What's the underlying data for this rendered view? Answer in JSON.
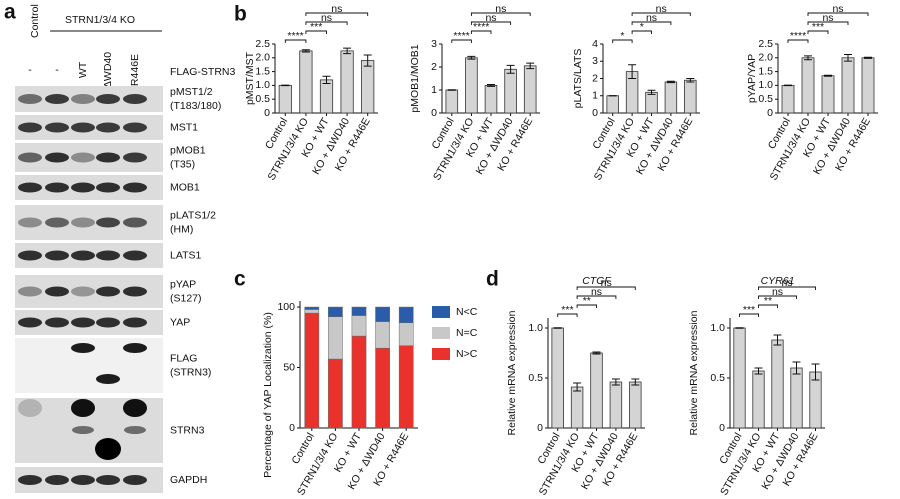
{
  "panel_labels": [
    "a",
    "b",
    "c",
    "d"
  ],
  "blot": {
    "control": "Control",
    "ko": "STRN1/3/4 KO",
    "lanes": [
      "-",
      "-",
      "WT",
      "ΔWD40",
      "R446E"
    ],
    "lane_row_label": "FLAG-STRN3",
    "rows": [
      {
        "lines": [
          "pMST1/2",
          "(T183/180)"
        ]
      },
      {
        "lines": [
          "MST1"
        ]
      },
      {
        "lines": [
          "pMOB1",
          "(T35)"
        ]
      },
      {
        "lines": [
          "MOB1"
        ]
      },
      {
        "lines": [
          "pLATS1/2",
          "(HM)"
        ]
      },
      {
        "lines": [
          "LATS1"
        ]
      },
      {
        "lines": [
          "pYAP",
          "(S127)"
        ]
      },
      {
        "lines": [
          "YAP"
        ]
      },
      {
        "lines": [
          "FLAG",
          "(STRN3)"
        ]
      },
      {
        "lines": [
          "STRN3"
        ]
      },
      {
        "lines": [
          "GAPDH"
        ]
      }
    ]
  },
  "chart_data": [
    {
      "type": "bar",
      "y_label": "pMST/MST",
      "color": "#d4d4d4",
      "categories": [
        "Control",
        "STRN1/3/4 KO",
        "KO + WT",
        "KO + ΔWD40",
        "KO + R446E"
      ],
      "values": [
        1.0,
        2.25,
        1.2,
        2.25,
        1.9
      ],
      "errors": [
        0.01,
        0.04,
        0.13,
        0.1,
        0.2
      ],
      "ylim": [
        0,
        2.5
      ],
      "yticks": [
        0,
        0.5,
        {
          "value": 1,
          "label": "1.0"
        },
        1.5,
        {
          "value": 2,
          "label": "2.0"
        },
        2.5
      ],
      "comparisons": [
        {
          "text": "****",
          "from": 0,
          "to": 1
        },
        {
          "text": "***",
          "from": 1,
          "to": 2
        },
        {
          "text": "ns",
          "from": 1,
          "to": 3
        },
        {
          "text": "ns",
          "from": 1,
          "to": 4
        }
      ]
    },
    {
      "type": "bar",
      "y_label": "pMOB1/MOB1",
      "color": "#d4d4d4",
      "categories": [
        "Control",
        "STRN1/3/4 KO",
        "KO + WT",
        "KO + ΔWD40",
        "KO + R446E"
      ],
      "values": [
        1.0,
        2.4,
        1.2,
        1.9,
        2.05
      ],
      "errors": [
        0.01,
        0.06,
        0.04,
        0.17,
        0.12
      ],
      "ylim": [
        0,
        3
      ],
      "yticks": [
        0,
        1,
        2,
        3
      ],
      "comparisons": [
        {
          "text": "****",
          "from": 0,
          "to": 1
        },
        {
          "text": "****",
          "from": 1,
          "to": 2
        },
        {
          "text": "ns",
          "from": 1,
          "to": 3
        },
        {
          "text": "ns",
          "from": 1,
          "to": 4
        }
      ]
    },
    {
      "type": "bar",
      "y_label": "pLATS/LATS",
      "color": "#d4d4d4",
      "categories": [
        "Control",
        "STRN1/3/4 KO",
        "KO + WT",
        "KO + ΔWD40",
        "KO + R446E"
      ],
      "values": [
        1.0,
        2.4,
        1.2,
        1.8,
        1.9
      ],
      "errors": [
        0.01,
        0.4,
        0.12,
        0.04,
        0.1
      ],
      "ylim": [
        0,
        4
      ],
      "yticks": [
        0,
        1,
        2,
        3,
        4
      ],
      "comparisons": [
        {
          "text": "*",
          "from": 0,
          "to": 1
        },
        {
          "text": "*",
          "from": 1,
          "to": 2
        },
        {
          "text": "ns",
          "from": 1,
          "to": 3
        },
        {
          "text": "ns",
          "from": 1,
          "to": 4
        }
      ]
    },
    {
      "type": "bar",
      "y_label": "pYAP/YAP",
      "color": "#d4d4d4",
      "categories": [
        "Control",
        "STRN1/3/4 KO",
        "KO + WT",
        "KO + ΔWD40",
        "KO + R446E"
      ],
      "values": [
        1.0,
        2.0,
        1.35,
        2.0,
        2.0
      ],
      "errors": [
        0.01,
        0.07,
        0.02,
        0.12,
        0.02
      ],
      "ylim": [
        0,
        2.5
      ],
      "yticks": [
        0,
        0.5,
        {
          "value": 1,
          "label": "1.0"
        },
        1.5,
        {
          "value": 2,
          "label": "2.0"
        },
        2.5
      ],
      "comparisons": [
        {
          "text": "****",
          "from": 0,
          "to": 1
        },
        {
          "text": "***",
          "from": 1,
          "to": 2
        },
        {
          "text": "ns",
          "from": 1,
          "to": 3
        },
        {
          "text": "ns",
          "from": 1,
          "to": 4
        }
      ]
    },
    {
      "type": "stacked_bar",
      "y_label": "Percentage of YAP Localization (%)",
      "categories": [
        "Control",
        "STRN1/3/4 KO",
        "KO + WT",
        "KO + ΔWD40",
        "KO + R446E"
      ],
      "series": [
        {
          "name": "N>C",
          "color": "#e8322b",
          "values": [
            95,
            57,
            76,
            66,
            68
          ]
        },
        {
          "name": "N=C",
          "color": "#c8c8c8",
          "values": [
            3,
            35,
            17,
            22,
            19
          ]
        },
        {
          "name": "N<C",
          "color": "#2a5caa",
          "values": [
            2,
            8,
            7,
            12,
            13
          ]
        }
      ],
      "ylim": [
        0,
        105
      ],
      "yticks": [
        0,
        50,
        100
      ]
    },
    {
      "type": "bar",
      "title": "CTGF",
      "y_label": "Relative mRNA expression",
      "color": "#d4d4d4",
      "categories": [
        "Control",
        "STRN1/3/4 KO",
        "KO + WT",
        "KO + ΔWD40",
        "KO + R446E"
      ],
      "values": [
        1.0,
        0.41,
        0.75,
        0.46,
        0.46
      ],
      "errors": [
        0.003,
        0.04,
        0.01,
        0.03,
        0.03
      ],
      "ylim": [
        0,
        1.1
      ],
      "yticks": [
        0,
        0.5,
        {
          "value": 1,
          "label": "1.0"
        }
      ],
      "comparisons": [
        {
          "text": "***",
          "from": 0,
          "to": 1
        },
        {
          "text": "**",
          "from": 1,
          "to": 2
        },
        {
          "text": "ns",
          "from": 1,
          "to": 3
        },
        {
          "text": "ns",
          "from": 1,
          "to": 4
        }
      ]
    },
    {
      "type": "bar",
      "title": "CYR61",
      "y_label": "Relative mRNA expression",
      "color": "#d4d4d4",
      "categories": [
        "Control",
        "STRN1/3/4 KO",
        "KO + WT",
        "KO + ΔWD40",
        "KO + R446E"
      ],
      "values": [
        1.0,
        0.57,
        0.88,
        0.6,
        0.56
      ],
      "errors": [
        0.003,
        0.03,
        0.05,
        0.06,
        0.08
      ],
      "ylim": [
        0,
        1.1
      ],
      "yticks": [
        0,
        0.5,
        {
          "value": 1,
          "label": "1.0"
        }
      ],
      "comparisons": [
        {
          "text": "***",
          "from": 0,
          "to": 1
        },
        {
          "text": "**",
          "from": 1,
          "to": 2
        },
        {
          "text": "ns",
          "from": 1,
          "to": 3
        },
        {
          "text": "ns",
          "from": 1,
          "to": 4
        }
      ]
    }
  ]
}
